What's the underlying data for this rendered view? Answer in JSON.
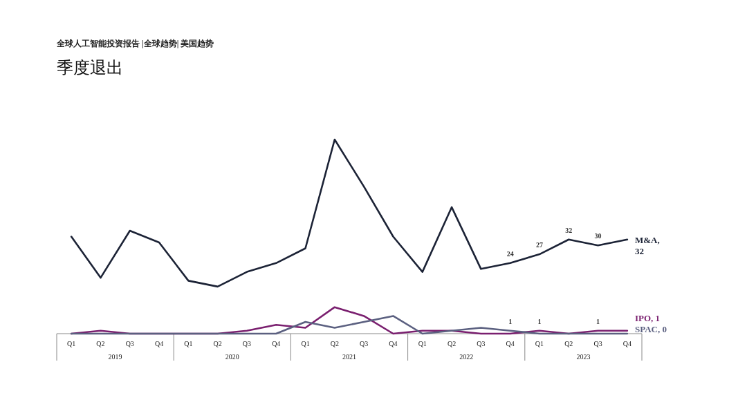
{
  "chart_data": {
    "type": "line",
    "title": "季度退出",
    "subtitle": "全球人工智能投资报告 |全球趋势| 美国趋势",
    "categories": [
      "Q1",
      "Q2",
      "Q3",
      "Q4",
      "Q1",
      "Q2",
      "Q3",
      "Q4",
      "Q1",
      "Q2",
      "Q3",
      "Q4",
      "Q1",
      "Q2",
      "Q3",
      "Q4",
      "Q1",
      "Q2",
      "Q3",
      "Q4"
    ],
    "annotations": [
      "2019",
      "2020",
      "2021",
      "2022",
      "2023"
    ],
    "series": [
      {
        "name": "M&A, 32",
        "color": "#1c2336",
        "values": [
          33,
          19,
          35,
          31,
          18,
          16,
          21,
          24,
          29,
          66,
          50,
          33,
          21,
          43,
          22,
          24,
          27,
          32,
          30,
          32
        ],
        "value_labels": [
          null,
          null,
          null,
          null,
          null,
          null,
          null,
          null,
          null,
          null,
          null,
          null,
          null,
          null,
          null,
          "24",
          "27",
          "32",
          "30",
          null
        ]
      },
      {
        "name": "IPO, 1",
        "color": "#7a1f6f",
        "values": [
          0,
          1,
          0,
          0,
          0,
          0,
          1,
          3,
          2,
          9,
          6,
          0,
          1,
          1,
          0,
          0,
          1,
          0,
          1,
          1
        ],
        "value_labels": [
          null,
          null,
          null,
          null,
          null,
          null,
          null,
          null,
          null,
          null,
          null,
          null,
          null,
          null,
          null,
          null,
          "1",
          null,
          "1",
          null
        ]
      },
      {
        "name": "SPAC, 0",
        "color": "#5b6080",
        "values": [
          0,
          0,
          0,
          0,
          0,
          0,
          0,
          0,
          4,
          2,
          4,
          6,
          0,
          1,
          2,
          1,
          0,
          0,
          0,
          0
        ],
        "value_labels": [
          null,
          null,
          null,
          null,
          null,
          null,
          null,
          null,
          null,
          null,
          null,
          null,
          null,
          null,
          null,
          "1",
          null,
          null,
          null,
          null
        ]
      }
    ]
  }
}
